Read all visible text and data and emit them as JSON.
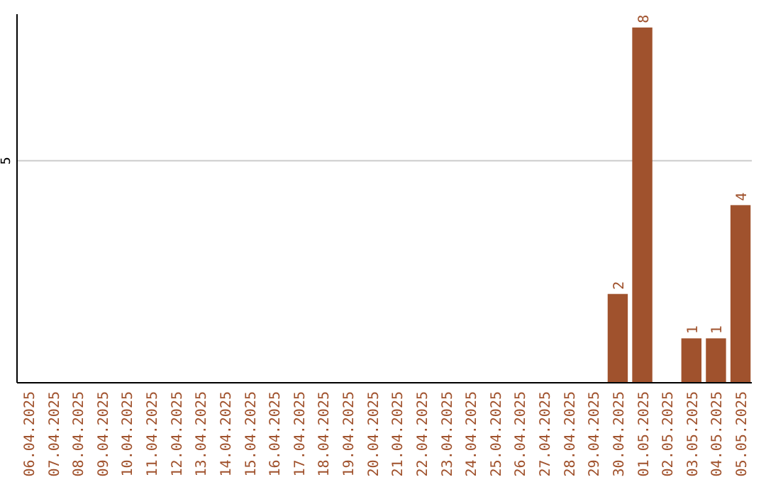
{
  "chart_data": {
    "type": "bar",
    "ylim": [
      0,
      8.3
    ],
    "categories": [
      "06.04.2025",
      "07.04.2025",
      "08.04.2025",
      "09.04.2025",
      "10.04.2025",
      "11.04.2025",
      "12.04.2025",
      "13.04.2025",
      "14.04.2025",
      "15.04.2025",
      "16.04.2025",
      "17.04.2025",
      "18.04.2025",
      "19.04.2025",
      "20.04.2025",
      "21.04.2025",
      "22.04.2025",
      "23.04.2025",
      "24.04.2025",
      "25.04.2025",
      "26.04.2025",
      "27.04.2025",
      "28.04.2025",
      "29.04.2025",
      "30.04.2025",
      "01.05.2025",
      "02.05.2025",
      "03.05.2025",
      "04.05.2025",
      "05.05.2025"
    ],
    "values": [
      null,
      null,
      null,
      null,
      null,
      null,
      null,
      null,
      null,
      null,
      null,
      null,
      null,
      null,
      null,
      null,
      null,
      null,
      null,
      null,
      null,
      null,
      null,
      null,
      2,
      8,
      null,
      1,
      1,
      4
    ],
    "data_labels": true,
    "color": "#a0522d",
    "ref_lines": [
      {
        "axis": "y",
        "value": 5,
        "label": "5",
        "color": "#cccccc"
      }
    ]
  }
}
